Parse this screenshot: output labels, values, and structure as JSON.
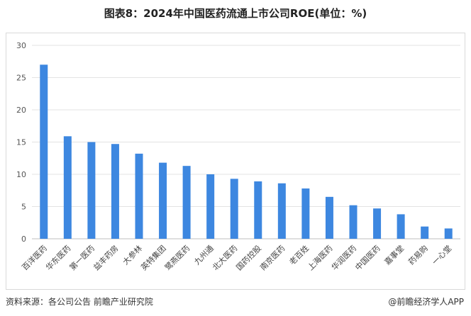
{
  "title": "图表8：2024年中国医药流通上市公司ROE(单位：%)",
  "source": "资料来源：各公司公告 前瞻产业研究院",
  "brand": "@前瞻经济学人APP",
  "chart_data": {
    "type": "bar",
    "title": "图表8：2024年中国医药流通上市公司ROE(单位：%)",
    "xlabel": "",
    "ylabel": "",
    "ylim": [
      0,
      30
    ],
    "yticks": [
      0,
      5,
      10,
      15,
      20,
      25,
      30
    ],
    "grid": true,
    "bar_color": "#3d87e0",
    "categories": [
      "百洋医药",
      "华东医药",
      "第一医药",
      "益丰药房",
      "大参林",
      "英特集团",
      "鹭燕医药",
      "九州通",
      "北大医药",
      "国药控股",
      "南京医药",
      "老百姓",
      "上海医药",
      "华润医药",
      "中国医药",
      "嘉事堂",
      "药易购",
      "一心堂"
    ],
    "values": [
      27.0,
      15.9,
      15.0,
      14.7,
      13.2,
      11.8,
      11.3,
      10.0,
      9.3,
      8.9,
      8.6,
      7.8,
      6.5,
      5.2,
      4.7,
      3.8,
      1.9,
      1.6
    ]
  }
}
